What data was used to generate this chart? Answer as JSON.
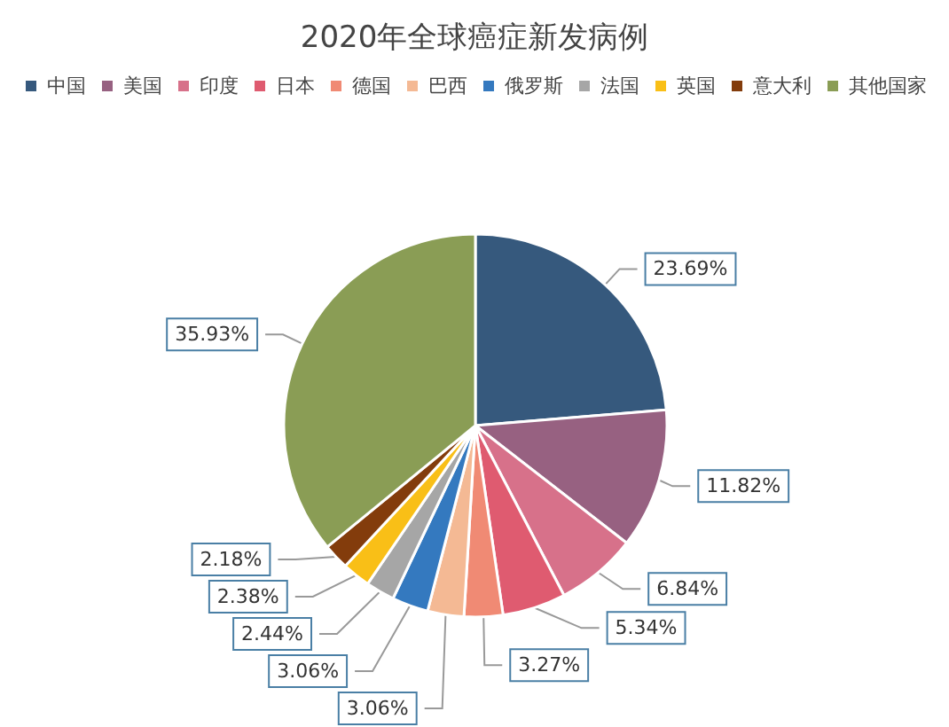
{
  "chart_data": {
    "type": "pie",
    "title": "2020年全球癌症新发病例",
    "categories": [
      "中国",
      "美国",
      "印度",
      "日本",
      "德国",
      "巴西",
      "俄罗斯",
      "法国",
      "英国",
      "意大利",
      "其他国家"
    ],
    "values": [
      23.69,
      11.82,
      6.84,
      5.34,
      3.27,
      3.06,
      3.06,
      2.44,
      2.38,
      2.18,
      35.93
    ],
    "value_labels": [
      "23.69%",
      "11.82%",
      "6.84%",
      "5.34%",
      "3.27%",
      "3.06%",
      "3.06%",
      "2.44%",
      "2.38%",
      "2.18%",
      "35.93%"
    ],
    "colors": [
      "#36597d",
      "#976181",
      "#d7718a",
      "#df5b70",
      "#f08a74",
      "#f4b994",
      "#3479bf",
      "#a6a6a6",
      "#f9bf17",
      "#833c0c",
      "#8a9d55"
    ],
    "legend": "top"
  }
}
